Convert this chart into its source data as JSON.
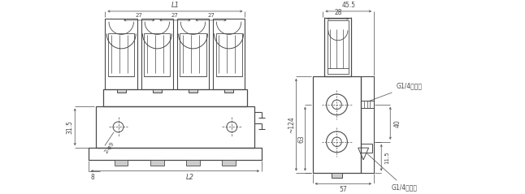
{
  "bg_color": "#ffffff",
  "line_color": "#4a4a4a",
  "dim_color": "#4a4a4a",
  "font_size": 5.5,
  "fig_width": 6.46,
  "fig_height": 2.39,
  "dpi": 100,
  "left_view": {
    "num_outlets": 4,
    "dim_L1": "L1",
    "dim_L2": "L2",
    "dim_27": "27",
    "dim_31_5": "31.5",
    "dim_2_phi9": "2-φ9",
    "dim_8": "8"
  },
  "right_view": {
    "dim_45_5": "45.5",
    "dim_28": "28",
    "dim_124": "~124",
    "dim_63": "63",
    "dim_40": "40",
    "dim_57": "57",
    "dim_11_5": "11.5",
    "label_in": "G1/4进油口",
    "label_out": "G1/4出油口"
  }
}
